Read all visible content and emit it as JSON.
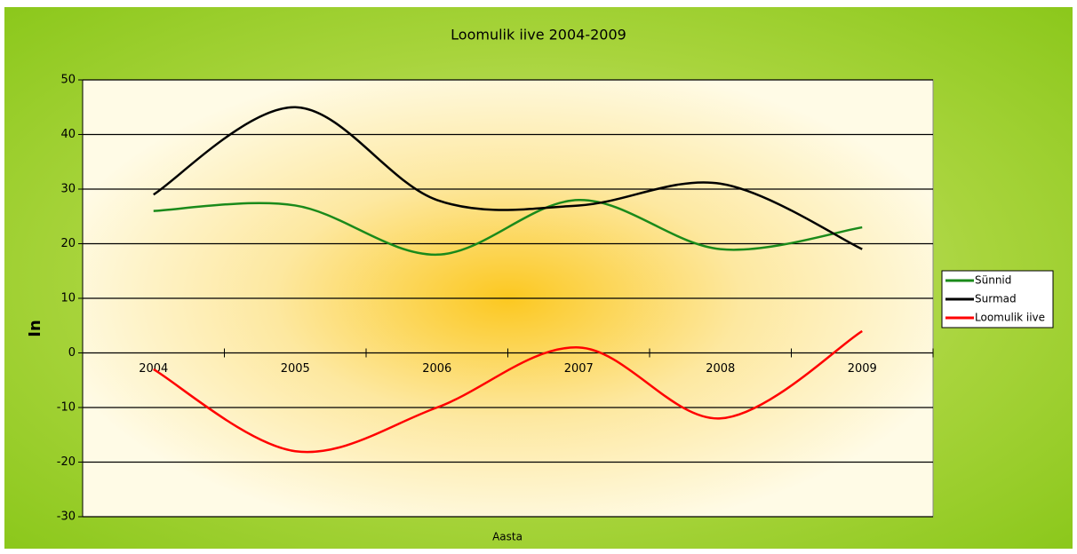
{
  "chart_data": {
    "type": "line",
    "title": "Loomulik iive 2004-2009",
    "x_label": "Aasta",
    "y_label": "In",
    "categories": [
      "2004",
      "2005",
      "2006",
      "2007",
      "2008",
      "2009"
    ],
    "series": [
      {
        "name": "Sünnid",
        "color": "#1a8a1a",
        "values": [
          26,
          27,
          18,
          28,
          19,
          23
        ]
      },
      {
        "name": "Surmad",
        "color": "#000000",
        "values": [
          29,
          45,
          28,
          27,
          31,
          19
        ]
      },
      {
        "name": "Loomulik iive",
        "color": "#ff0000",
        "values": [
          -3,
          -18,
          -10,
          1,
          -12,
          4
        ]
      }
    ],
    "ylim": [
      -30,
      50
    ],
    "yticks": [
      -30,
      -20,
      -10,
      0,
      10,
      20,
      30,
      40,
      50
    ],
    "grid": true,
    "smooth": true,
    "legend": "right"
  }
}
